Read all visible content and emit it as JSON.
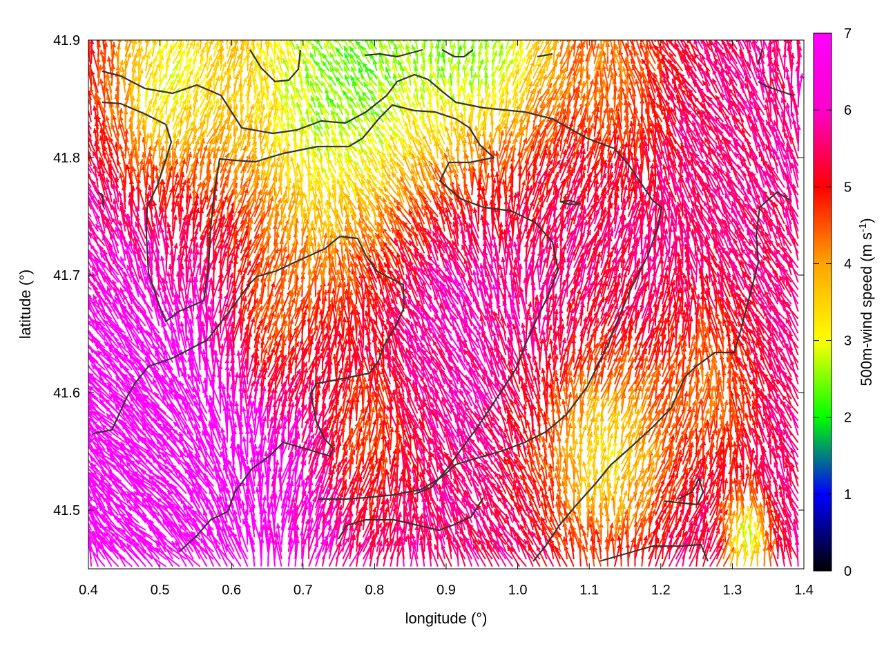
{
  "chart_data": {
    "type": "vector-field",
    "xlabel": "longitude (°)",
    "ylabel": "latitude (°)",
    "xlim": [
      0.4,
      1.4
    ],
    "ylim": [
      41.45,
      41.9
    ],
    "x_ticks": [
      "0.4",
      "0.5",
      "0.6",
      "0.7",
      "0.8",
      "0.9",
      "1.0",
      "1.1",
      "1.2",
      "1.3",
      "1.4"
    ],
    "y_ticks": [
      "41.5",
      "41.6",
      "41.7",
      "41.8",
      "41.9"
    ],
    "colorbar": {
      "label": "500m-wind speed (m s-1)",
      "label_main": "500m-wind speed (m s",
      "label_sup": "-1",
      "label_end": ")",
      "range": [
        0,
        7
      ],
      "ticks": [
        "0",
        "1",
        "2",
        "3",
        "4",
        "5",
        "6",
        "7"
      ],
      "colors": [
        "#000000",
        "#0000ff",
        "#00ff00",
        "#ffff00",
        "#ffa500",
        "#ff0000",
        "#ff00ff"
      ]
    },
    "grid": false,
    "wind_direction": "predominantly from the south (northward), veering slightly north-westward",
    "contour_color": "#333333"
  }
}
